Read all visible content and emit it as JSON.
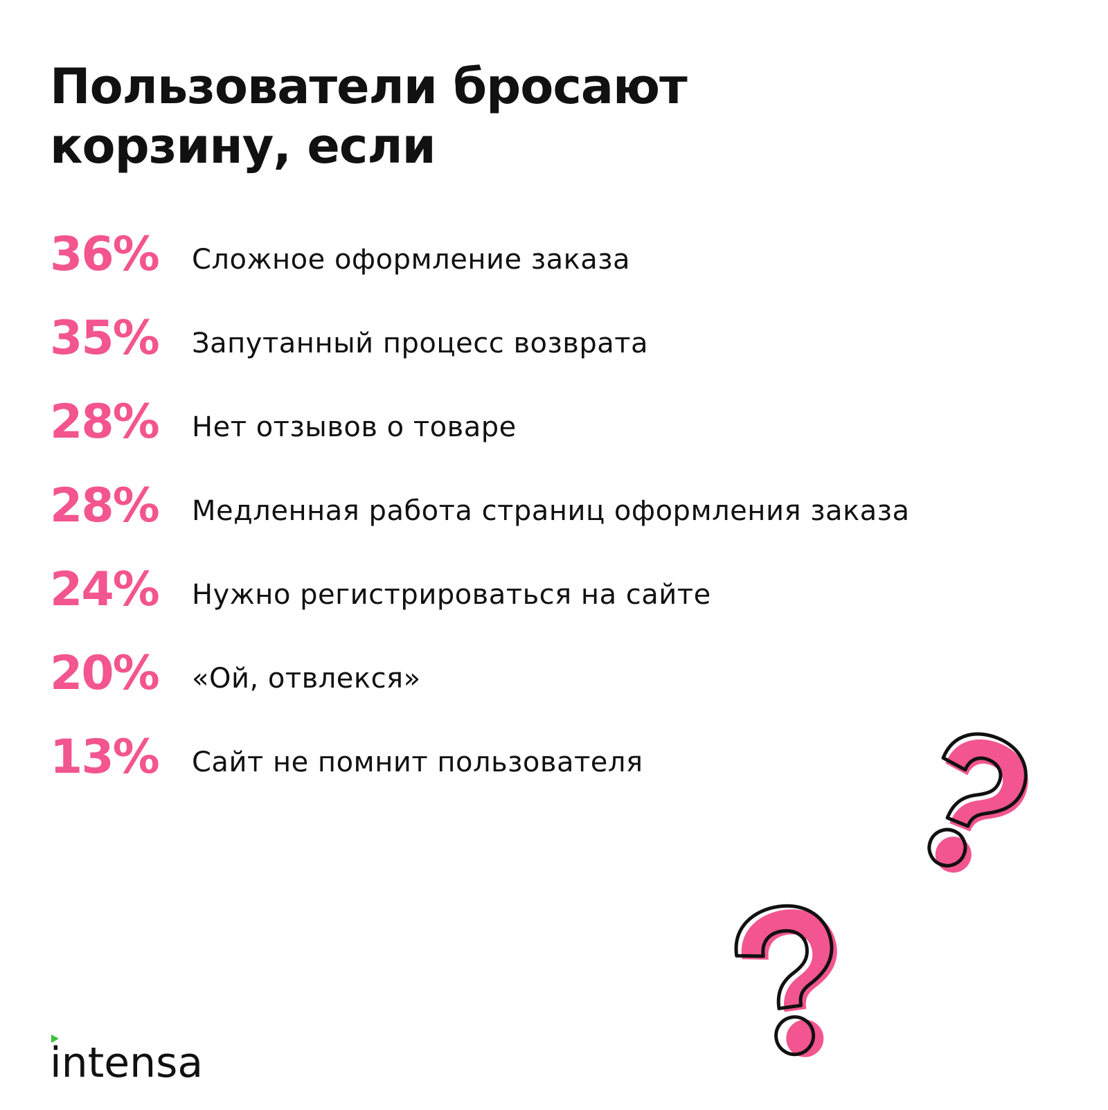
{
  "title": {
    "line1": "Пользователи бросают",
    "line2": "корзину, если"
  },
  "stats": [
    {
      "percent": "36%",
      "label": "Сложное оформление заказа"
    },
    {
      "percent": "35%",
      "label": "Запутанный процесс возврата"
    },
    {
      "percent": "28%",
      "label": "Нет отзывов о товаре"
    },
    {
      "percent": "28%",
      "label": "Медленная работа страниц оформления заказа"
    },
    {
      "percent": "24%",
      "label": "Нужно регистрироваться на сайте"
    },
    {
      "percent": "20%",
      "label": "«Ой, отвлекся»"
    },
    {
      "percent": "13%",
      "label": "Сайт не помнит пользователя"
    }
  ],
  "brand": {
    "name": "intensa"
  },
  "decorations": {
    "icons": [
      "question-mark-icon",
      "question-mark-icon"
    ]
  },
  "colors": {
    "accent": "#f2558f",
    "text": "#111111",
    "background": "#ffffff",
    "brand_mark": "#3fbf3f"
  }
}
